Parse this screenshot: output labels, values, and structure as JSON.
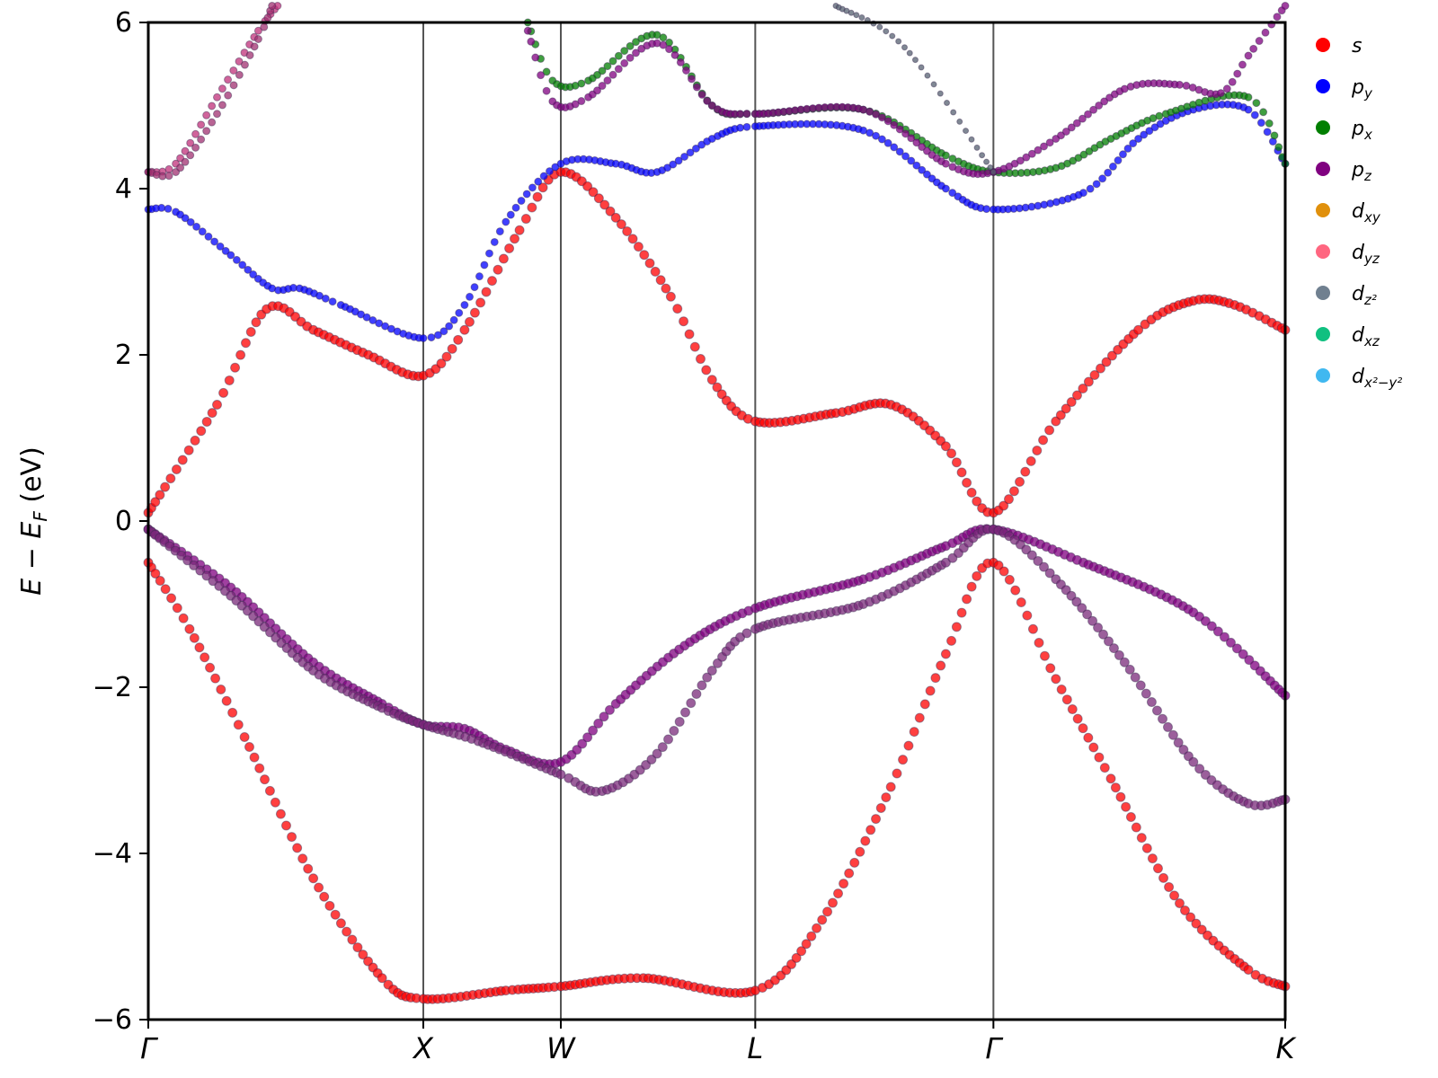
{
  "chart_data": {
    "type": "scatter",
    "title": "",
    "xlabel": "",
    "ylabel_parts": [
      "E",
      " − ",
      "E",
      "F",
      " (eV)"
    ],
    "ylim": [
      -6,
      6
    ],
    "yticks": [
      -6,
      -4,
      -2,
      0,
      2,
      4,
      6
    ],
    "ytick_labels": [
      "−6",
      "−4",
      "−2",
      "0",
      "2",
      "4",
      "6"
    ],
    "kpoints": [
      {
        "label": "Γ",
        "x": 0.0
      },
      {
        "label": "X",
        "x": 1.0
      },
      {
        "label": "W",
        "x": 1.5
      },
      {
        "label": "L",
        "x": 2.207
      },
      {
        "label": "Γ",
        "x": 3.073
      },
      {
        "label": "K",
        "x": 4.134
      }
    ],
    "xlim": [
      0,
      4.134
    ],
    "legend_position": "outside-right",
    "legend": [
      {
        "base": "s",
        "sub": "",
        "color": "#ff0000"
      },
      {
        "base": "p",
        "sub": "y",
        "color": "#0000ff"
      },
      {
        "base": "p",
        "sub": "x",
        "color": "#007f00"
      },
      {
        "base": "p",
        "sub": "z",
        "color": "#800080"
      },
      {
        "base": "d",
        "sub": "xy",
        "color": "#e0900c"
      },
      {
        "base": "d",
        "sub": "yz",
        "color": "#ff6680"
      },
      {
        "base": "d",
        "sub": "z²",
        "color": "#708090"
      },
      {
        "base": "d",
        "sub": "xz",
        "color": "#10c080"
      },
      {
        "base": "d",
        "sub": "x²−y²",
        "color": "#40b8f0"
      }
    ],
    "series": [
      {
        "values": [
          [
            0,
            0.1
          ],
          [
            0.25,
            1.4
          ],
          [
            0.43,
            2.55
          ],
          [
            0.6,
            2.3
          ],
          [
            0.8,
            2.0
          ],
          [
            1.0,
            1.75
          ],
          [
            1.15,
            2.3
          ],
          [
            1.35,
            3.5
          ],
          [
            1.5,
            4.2
          ],
          [
            1.7,
            3.65
          ],
          [
            1.9,
            2.7
          ],
          [
            2.05,
            1.7
          ],
          [
            2.207,
            1.2
          ],
          [
            2.5,
            1.3
          ],
          [
            2.7,
            1.4
          ],
          [
            2.9,
            0.9
          ],
          [
            3.073,
            0.1
          ],
          [
            3.3,
            1.2
          ],
          [
            3.6,
            2.3
          ],
          [
            3.8,
            2.65
          ],
          [
            3.95,
            2.6
          ],
          [
            4.134,
            2.3
          ]
        ],
        "color": "#ff0000",
        "base": 5
      },
      {
        "values": [
          [
            0,
            3.75
          ],
          [
            0.1,
            3.72
          ],
          [
            0.3,
            3.2
          ],
          [
            0.45,
            2.8
          ],
          [
            0.55,
            2.8
          ],
          [
            0.7,
            2.6
          ],
          [
            1.0,
            2.2
          ],
          [
            1.15,
            2.6
          ],
          [
            1.3,
            3.6
          ],
          [
            1.5,
            4.3
          ],
          [
            1.7,
            4.3
          ],
          [
            1.85,
            4.2
          ],
          [
            2.05,
            4.6
          ],
          [
            2.207,
            4.75
          ],
          [
            2.6,
            4.7
          ],
          [
            2.9,
            4.0
          ],
          [
            3.073,
            3.75
          ],
          [
            3.4,
            3.95
          ],
          [
            3.6,
            4.6
          ],
          [
            3.8,
            4.95
          ],
          [
            4.0,
            4.95
          ],
          [
            4.134,
            4.3
          ]
        ],
        "color": "#0000ff",
        "base": 4
      },
      {
        "values": [
          [
            0,
            4.2
          ],
          [
            0.1,
            4.3
          ],
          [
            0.25,
            5.1
          ],
          [
            0.4,
            5.9
          ],
          [
            0.47,
            6.2
          ]
        ],
        "color": "#c0307a",
        "base": 4
      },
      {
        "values": [
          [
            0,
            4.2
          ],
          [
            0.1,
            4.2
          ],
          [
            0.25,
            4.9
          ],
          [
            0.4,
            5.8
          ],
          [
            0.45,
            6.2
          ]
        ],
        "color": "#a03070",
        "base": 4
      },
      {
        "values": [
          [
            1.38,
            6.0
          ],
          [
            1.47,
            5.3
          ],
          [
            1.6,
            5.3
          ],
          [
            1.85,
            5.85
          ],
          [
            2.05,
            5.0
          ],
          [
            2.207,
            4.9
          ],
          [
            2.6,
            4.95
          ],
          [
            2.9,
            4.4
          ],
          [
            3.073,
            4.2
          ],
          [
            3.3,
            4.25
          ],
          [
            3.5,
            4.6
          ],
          [
            3.7,
            4.9
          ],
          [
            4.0,
            5.1
          ],
          [
            4.134,
            4.3
          ]
        ],
        "color": "#007f00",
        "base": 4
      },
      {
        "values": [
          [
            1.38,
            5.9
          ],
          [
            1.47,
            5.05
          ],
          [
            1.6,
            5.1
          ],
          [
            1.85,
            5.75
          ],
          [
            2.05,
            5.0
          ],
          [
            2.207,
            4.9
          ],
          [
            2.6,
            4.95
          ],
          [
            2.9,
            4.3
          ],
          [
            3.073,
            4.2
          ],
          [
            3.3,
            4.6
          ],
          [
            3.55,
            5.2
          ],
          [
            3.75,
            5.25
          ],
          [
            3.9,
            5.15
          ],
          [
            4.0,
            5.6
          ],
          [
            4.134,
            6.2
          ]
        ],
        "color": "#800080",
        "base": 4
      },
      {
        "values": [
          [
            2.5,
            6.2
          ],
          [
            2.75,
            5.7
          ],
          [
            3.073,
            4.2
          ]
        ],
        "color": "#556070",
        "base": 3
      },
      {
        "values": [
          [
            0,
            -0.1
          ],
          [
            0.3,
            -0.8
          ],
          [
            0.6,
            -1.7
          ],
          [
            0.85,
            -2.2
          ],
          [
            1.0,
            -2.45
          ],
          [
            1.15,
            -2.5
          ],
          [
            1.3,
            -2.75
          ],
          [
            1.5,
            -2.9
          ],
          [
            1.7,
            -2.2
          ],
          [
            1.95,
            -1.5
          ],
          [
            2.207,
            -1.05
          ],
          [
            2.6,
            -0.7
          ],
          [
            2.9,
            -0.3
          ],
          [
            3.073,
            -0.1
          ],
          [
            3.4,
            -0.5
          ],
          [
            3.8,
            -1.1
          ],
          [
            4.134,
            -2.1
          ]
        ],
        "color": "#800080",
        "base": 5
      },
      {
        "values": [
          [
            0,
            -0.1
          ],
          [
            0.3,
            -0.9
          ],
          [
            0.6,
            -1.8
          ],
          [
            0.85,
            -2.25
          ],
          [
            1.0,
            -2.45
          ],
          [
            1.2,
            -2.65
          ],
          [
            1.5,
            -3.05
          ],
          [
            1.65,
            -3.25
          ],
          [
            1.85,
            -2.8
          ],
          [
            2.05,
            -1.8
          ],
          [
            2.207,
            -1.3
          ],
          [
            2.6,
            -1.0
          ],
          [
            2.9,
            -0.5
          ],
          [
            3.073,
            -0.1
          ],
          [
            3.3,
            -0.7
          ],
          [
            3.55,
            -1.7
          ],
          [
            3.8,
            -2.9
          ],
          [
            4.0,
            -3.4
          ],
          [
            4.134,
            -3.35
          ]
        ],
        "color": "#7a2a7a",
        "base": 5
      },
      {
        "values": [
          [
            0,
            -0.5
          ],
          [
            0.15,
            -1.3
          ],
          [
            0.35,
            -2.6
          ],
          [
            0.6,
            -4.3
          ],
          [
            0.85,
            -5.5
          ],
          [
            1.0,
            -5.75
          ],
          [
            1.3,
            -5.65
          ],
          [
            1.5,
            -5.6
          ],
          [
            1.8,
            -5.5
          ],
          [
            2.207,
            -5.65
          ],
          [
            2.45,
            -4.8
          ],
          [
            2.7,
            -3.2
          ],
          [
            2.9,
            -1.6
          ],
          [
            3.073,
            -0.5
          ],
          [
            3.3,
            -1.9
          ],
          [
            3.5,
            -3.1
          ],
          [
            3.75,
            -4.6
          ],
          [
            4.0,
            -5.4
          ],
          [
            4.134,
            -5.6
          ]
        ],
        "color": "#ff0000",
        "base": 5
      }
    ]
  }
}
